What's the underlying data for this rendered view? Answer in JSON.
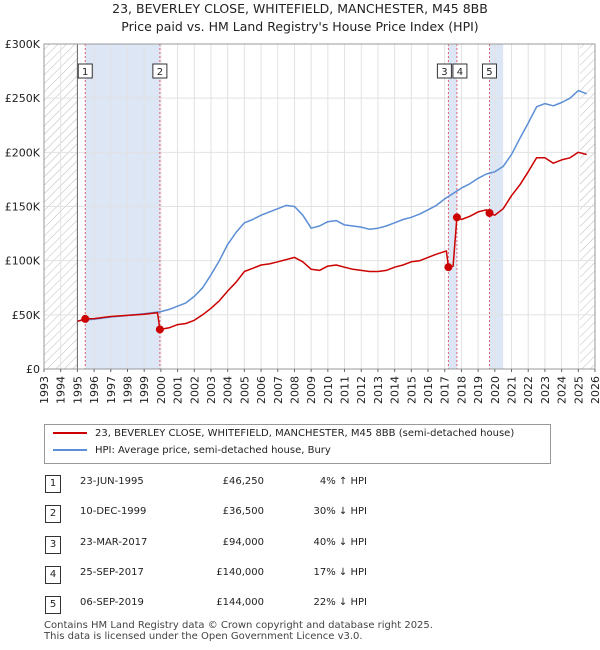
{
  "title_line1": "23, BEVERLEY CLOSE, WHITEFIELD, MANCHESTER, M45 8BB",
  "title_line2": "Price paid vs. HM Land Registry's House Price Index (HPI)",
  "colors": {
    "property": "#cc0000",
    "hpi": "#5b8ed6",
    "shade": "#dce6f5",
    "hatch": "#bbbbbb",
    "marker_line": "#e06070"
  },
  "chart_data": {
    "type": "line",
    "x_range": [
      1993,
      2026
    ],
    "y_range": [
      0,
      300000
    ],
    "y_ticks": [
      {
        "value": 0,
        "label": "£0"
      },
      {
        "value": 50000,
        "label": "£50K"
      },
      {
        "value": 100000,
        "label": "£100K"
      },
      {
        "value": 150000,
        "label": "£150K"
      },
      {
        "value": 200000,
        "label": "£200K"
      },
      {
        "value": 250000,
        "label": "£250K"
      },
      {
        "value": 300000,
        "label": "£300K"
      }
    ],
    "x_ticks": [
      "1993",
      "1994",
      "1995",
      "1996",
      "1997",
      "1998",
      "1999",
      "2000",
      "2001",
      "2002",
      "2003",
      "2004",
      "2005",
      "2006",
      "2007",
      "2008",
      "2009",
      "2010",
      "2011",
      "2012",
      "2013",
      "2014",
      "2015",
      "2016",
      "2017",
      "2018",
      "2019",
      "2020",
      "2021",
      "2022",
      "2023",
      "2024",
      "2025",
      "2026"
    ],
    "hatched_periods": [
      [
        1993,
        1995.0
      ],
      [
        2025.1,
        2026
      ]
    ],
    "shaded_periods": [
      [
        1995.47,
        1999.94
      ],
      [
        2017.22,
        2017.73
      ],
      [
        2019.68,
        2020.5
      ]
    ],
    "series": [
      {
        "name": "23, BEVERLEY CLOSE, WHITEFIELD, MANCHESTER, M45 8BB (semi-detached house)",
        "color": "#cc0000",
        "points": [
          [
            1995.0,
            44000
          ],
          [
            1995.47,
            46250
          ],
          [
            1996.0,
            46500
          ],
          [
            1997.0,
            48500
          ],
          [
            1998.0,
            49500
          ],
          [
            1999.0,
            50500
          ],
          [
            1999.8,
            52000
          ],
          [
            1999.94,
            36500
          ],
          [
            2000.5,
            38000
          ],
          [
            2001.0,
            41000
          ],
          [
            2001.5,
            42000
          ],
          [
            2002.0,
            45000
          ],
          [
            2002.5,
            50000
          ],
          [
            2003.0,
            56000
          ],
          [
            2003.5,
            63000
          ],
          [
            2004.0,
            72000
          ],
          [
            2004.5,
            80000
          ],
          [
            2005.0,
            90000
          ],
          [
            2005.5,
            93000
          ],
          [
            2006.0,
            96000
          ],
          [
            2006.5,
            97000
          ],
          [
            2007.0,
            99000
          ],
          [
            2007.5,
            101000
          ],
          [
            2008.0,
            103000
          ],
          [
            2008.5,
            99000
          ],
          [
            2009.0,
            92000
          ],
          [
            2009.5,
            91000
          ],
          [
            2010.0,
            95000
          ],
          [
            2010.5,
            96000
          ],
          [
            2011.0,
            94000
          ],
          [
            2011.5,
            92000
          ],
          [
            2012.0,
            91000
          ],
          [
            2012.5,
            90000
          ],
          [
            2013.0,
            90000
          ],
          [
            2013.5,
            91000
          ],
          [
            2014.0,
            94000
          ],
          [
            2014.5,
            96000
          ],
          [
            2015.0,
            99000
          ],
          [
            2015.5,
            100000
          ],
          [
            2016.0,
            103000
          ],
          [
            2016.5,
            106000
          ],
          [
            2017.1,
            109000
          ],
          [
            2017.22,
            94000
          ],
          [
            2017.5,
            95000
          ],
          [
            2017.73,
            140000
          ],
          [
            2018.0,
            138000
          ],
          [
            2018.5,
            141000
          ],
          [
            2019.0,
            145000
          ],
          [
            2019.5,
            147000
          ],
          [
            2019.68,
            144000
          ],
          [
            2020.0,
            142000
          ],
          [
            2020.5,
            148000
          ],
          [
            2021.0,
            160000
          ],
          [
            2021.5,
            170000
          ],
          [
            2022.0,
            182000
          ],
          [
            2022.5,
            195000
          ],
          [
            2023.0,
            195000
          ],
          [
            2023.5,
            190000
          ],
          [
            2024.0,
            193000
          ],
          [
            2024.5,
            195000
          ],
          [
            2025.0,
            200000
          ],
          [
            2025.5,
            198000
          ]
        ]
      },
      {
        "name": "HPI: Average price, semi-detached house, Bury",
        "color": "#5b8ed6",
        "points": [
          [
            1995.0,
            44000
          ],
          [
            1995.5,
            45500
          ],
          [
            1996.0,
            46000
          ],
          [
            1997.0,
            48000
          ],
          [
            1998.0,
            49500
          ],
          [
            1999.0,
            51000
          ],
          [
            2000.0,
            53000
          ],
          [
            2000.5,
            55000
          ],
          [
            2001.0,
            58000
          ],
          [
            2001.5,
            61000
          ],
          [
            2002.0,
            67000
          ],
          [
            2002.5,
            75000
          ],
          [
            2003.0,
            87000
          ],
          [
            2003.5,
            100000
          ],
          [
            2004.0,
            115000
          ],
          [
            2004.5,
            126000
          ],
          [
            2005.0,
            135000
          ],
          [
            2005.5,
            138000
          ],
          [
            2006.0,
            142000
          ],
          [
            2006.5,
            145000
          ],
          [
            2007.0,
            148000
          ],
          [
            2007.5,
            151000
          ],
          [
            2008.0,
            150000
          ],
          [
            2008.5,
            142000
          ],
          [
            2009.0,
            130000
          ],
          [
            2009.5,
            132000
          ],
          [
            2010.0,
            136000
          ],
          [
            2010.5,
            137000
          ],
          [
            2011.0,
            133000
          ],
          [
            2011.5,
            132000
          ],
          [
            2012.0,
            131000
          ],
          [
            2012.5,
            129000
          ],
          [
            2013.0,
            130000
          ],
          [
            2013.5,
            132000
          ],
          [
            2014.0,
            135000
          ],
          [
            2014.5,
            138000
          ],
          [
            2015.0,
            140000
          ],
          [
            2015.5,
            143000
          ],
          [
            2016.0,
            147000
          ],
          [
            2016.5,
            151000
          ],
          [
            2017.0,
            157000
          ],
          [
            2017.5,
            162000
          ],
          [
            2018.0,
            167000
          ],
          [
            2018.5,
            171000
          ],
          [
            2019.0,
            176000
          ],
          [
            2019.5,
            180000
          ],
          [
            2020.0,
            182000
          ],
          [
            2020.5,
            187000
          ],
          [
            2021.0,
            198000
          ],
          [
            2021.5,
            213000
          ],
          [
            2022.0,
            227000
          ],
          [
            2022.5,
            242000
          ],
          [
            2023.0,
            245000
          ],
          [
            2023.5,
            243000
          ],
          [
            2024.0,
            246000
          ],
          [
            2024.5,
            250000
          ],
          [
            2025.0,
            257000
          ],
          [
            2025.5,
            254000
          ]
        ]
      }
    ],
    "transactions": [
      {
        "label": "1",
        "x": 1995.47,
        "price": 46250
      },
      {
        "label": "2",
        "x": 1999.94,
        "price": 36500
      },
      {
        "label": "3",
        "x": 2017.22,
        "price": 94000
      },
      {
        "label": "4",
        "x": 2017.73,
        "price": 140000
      },
      {
        "label": "5",
        "x": 2019.68,
        "price": 144000
      }
    ]
  },
  "legend": {
    "property": "23, BEVERLEY CLOSE, WHITEFIELD, MANCHESTER, M45 8BB (semi-detached house)",
    "hpi": "HPI: Average price, semi-detached house, Bury"
  },
  "table": [
    {
      "num": "1",
      "date": "23-JUN-1995",
      "price": "£46,250",
      "hpi": "4% ↑ HPI"
    },
    {
      "num": "2",
      "date": "10-DEC-1999",
      "price": "£36,500",
      "hpi": "30% ↓ HPI"
    },
    {
      "num": "3",
      "date": "23-MAR-2017",
      "price": "£94,000",
      "hpi": "40% ↓ HPI"
    },
    {
      "num": "4",
      "date": "25-SEP-2017",
      "price": "£140,000",
      "hpi": "17% ↓ HPI"
    },
    {
      "num": "5",
      "date": "06-SEP-2019",
      "price": "£144,000",
      "hpi": "22% ↓ HPI"
    }
  ],
  "footer_line1": "Contains HM Land Registry data © Crown copyright and database right 2025.",
  "footer_line2": "This data is licensed under the Open Government Licence v3.0."
}
